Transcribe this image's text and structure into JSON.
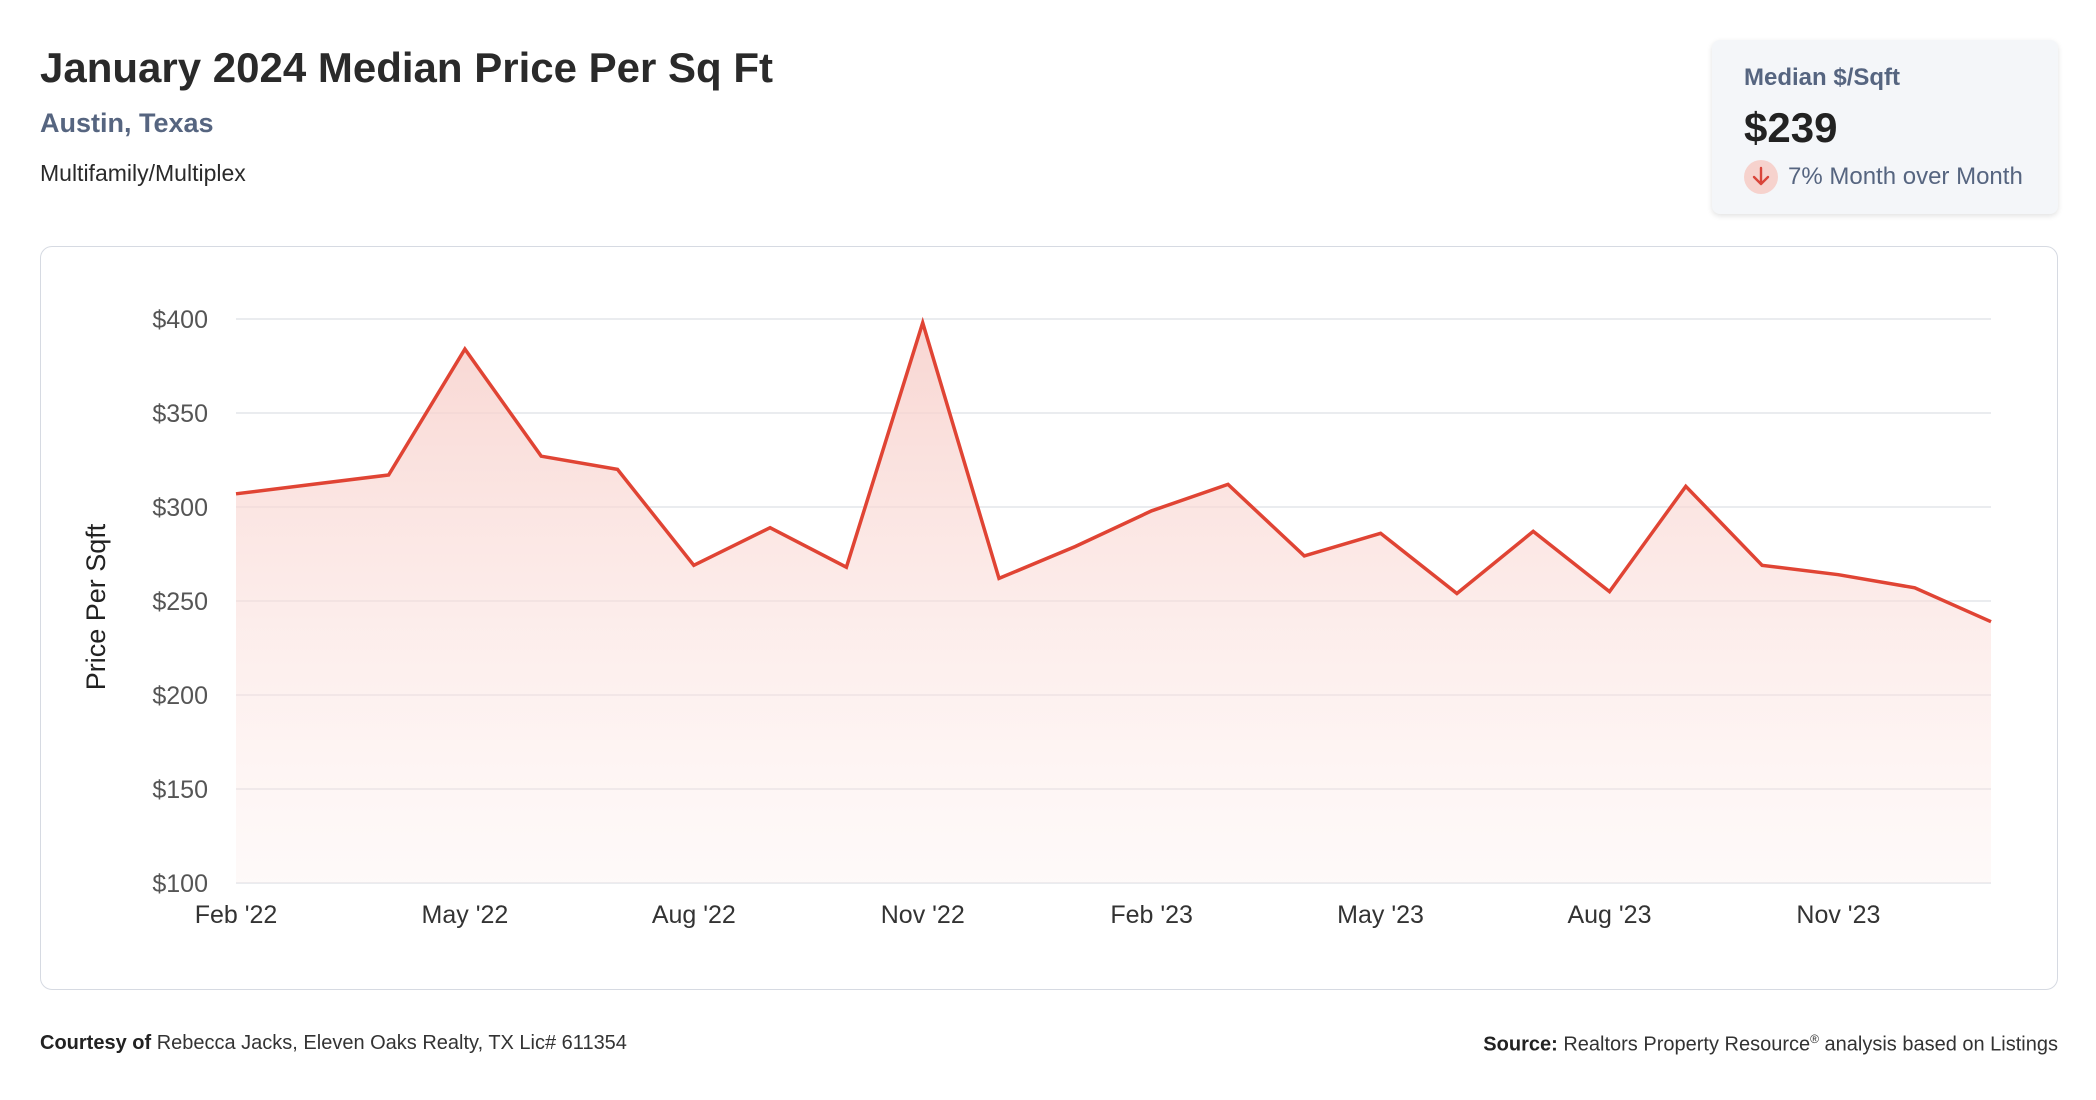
{
  "header": {
    "title": "January 2024 Median Price Per Sq Ft",
    "location": "Austin, Texas",
    "category": "Multifamily/Multiplex"
  },
  "stat_card": {
    "label": "Median $/Sqft",
    "value": "$239",
    "change": "7% Month over Month",
    "change_direction_icon": "arrow-down-icon"
  },
  "footer": {
    "courtesy_label": "Courtesy of",
    "courtesy_text": "Rebecca Jacks, Eleven Oaks Realty, TX Lic# 611354",
    "source_label": "Source:",
    "source_text_1": "Realtors Property Resource",
    "source_mark": "®",
    "source_text_2": " analysis based on Listings"
  },
  "colors": {
    "line": "#e04434",
    "fill_top": "#f7cfca",
    "grid": "#e3e5ea",
    "axis_text": "#555555"
  },
  "chart_data": {
    "type": "area",
    "title": "",
    "ylabel": "Price Per Sqft",
    "xlabel": "",
    "ylim": [
      100,
      400
    ],
    "y_ticks": [
      100,
      150,
      200,
      250,
      300,
      350,
      400
    ],
    "y_tick_labels": [
      "$100",
      "$150",
      "$200",
      "$250",
      "$300",
      "$350",
      "$400"
    ],
    "x_tick_labels": [
      "Feb '22",
      "May '22",
      "Aug '22",
      "Nov '22",
      "Feb '23",
      "May '23",
      "Aug '23",
      "Nov '23"
    ],
    "x_tick_month_indices": [
      0,
      3,
      6,
      9,
      12,
      15,
      18,
      21
    ],
    "grid": true,
    "legend": "none",
    "x": [
      "2022-02",
      "2022-03",
      "2022-04",
      "2022-05",
      "2022-06",
      "2022-07",
      "2022-08",
      "2022-09",
      "2022-10",
      "2022-11",
      "2022-12",
      "2023-01",
      "2023-02",
      "2023-03",
      "2023-04",
      "2023-05",
      "2023-06",
      "2023-07",
      "2023-08",
      "2023-09",
      "2023-10",
      "2023-11",
      "2023-12",
      "2024-01"
    ],
    "series": [
      {
        "values": [
          307,
          312,
          317,
          384,
          327,
          320,
          269,
          289,
          268,
          398,
          262,
          279,
          298,
          312,
          274,
          286,
          254,
          287,
          255,
          311,
          269,
          264,
          257,
          239
        ]
      }
    ]
  }
}
